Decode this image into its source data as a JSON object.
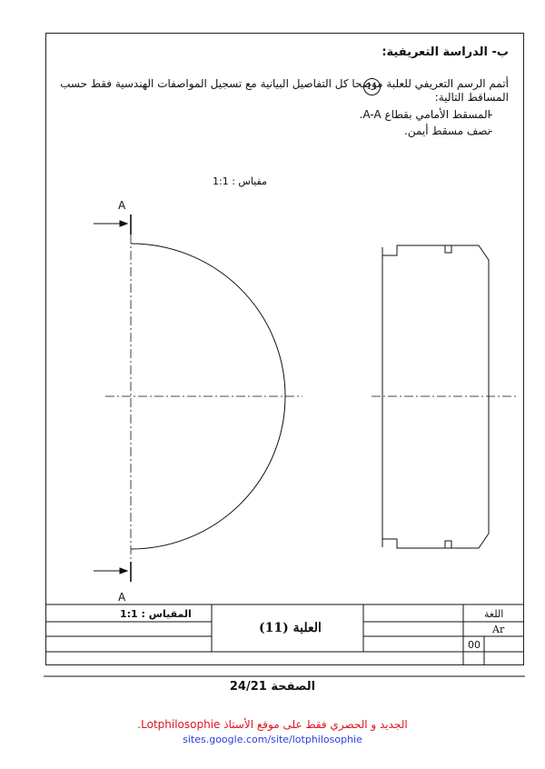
{
  "section_title": "ب- الدراسة التعريفية:",
  "instruction_line1": "أتمم الرسم التعريفي للعلبة      موضحا كل التفاصيل البيانية مع تسجيل المواصفات الهندسية فقط حسب",
  "instruction_circle_number": "11",
  "instruction_line2": "المساقط التالية:",
  "list_items": [
    {
      "dash": "-",
      "text": "المسقط الأمامي بقطاع A-A."
    },
    {
      "dash": "-",
      "text": "نصف مسقط أيمن."
    }
  ],
  "drawing_scale_label": "مقياس : 1:1",
  "section_marker_top": "A",
  "section_marker_bottom": "A",
  "title_block": {
    "scale_label": "المقياس : 1:1",
    "part_name": "العلبة (11)",
    "language_label": "اللغة",
    "language_value": "Ar",
    "revision": "00"
  },
  "footer": {
    "page_label": "الصفحة  24/21",
    "promo_text": "الجديد و الحصري فقط على موقع الأستاذ Lotphilosophie.",
    "url": "sites.google.com/site/lotphilosophie"
  }
}
